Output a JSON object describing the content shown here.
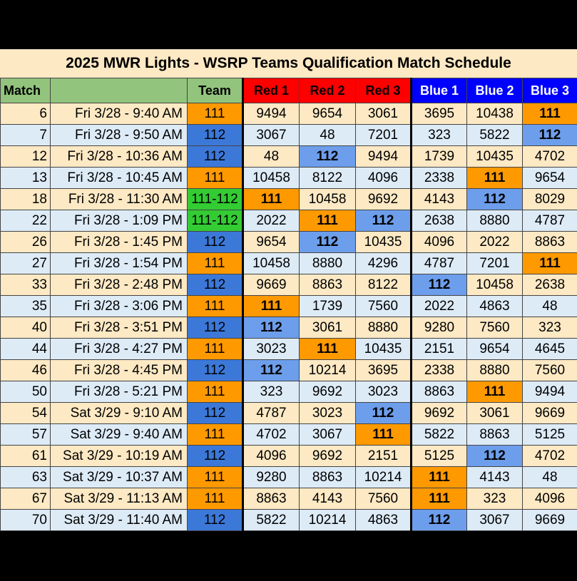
{
  "title": "2025 MWR Lights - WSRP Teams Qualification Match Schedule",
  "headers": {
    "match": "Match",
    "time": "",
    "team": "Team",
    "red1": "Red 1",
    "red2": "Red 2",
    "red3": "Red 3",
    "blue1": "Blue 1",
    "blue2": "Blue 2",
    "blue3": "Blue 3"
  },
  "colors": {
    "team111": "#ff9900",
    "team112": "#3c78d8",
    "both": "#33cc33",
    "red": "#ff0000",
    "blue": "#0000ff",
    "header_green": "#93c47d"
  },
  "rows": [
    {
      "match": "6",
      "time": "Fri 3/28 - 9:40 AM",
      "team": "111",
      "alliances": [
        "9494",
        "9654",
        "3061",
        "3695",
        "10438",
        "111"
      ]
    },
    {
      "match": "7",
      "time": "Fri 3/28 - 9:50 AM",
      "team": "112",
      "alliances": [
        "3067",
        "48",
        "7201",
        "323",
        "5822",
        "112"
      ]
    },
    {
      "match": "12",
      "time": "Fri 3/28 - 10:36 AM",
      "team": "112",
      "alliances": [
        "48",
        "112",
        "9494",
        "1739",
        "10435",
        "4702"
      ]
    },
    {
      "match": "13",
      "time": "Fri 3/28 - 10:45 AM",
      "team": "111",
      "alliances": [
        "10458",
        "8122",
        "4096",
        "2338",
        "111",
        "9654"
      ]
    },
    {
      "match": "18",
      "time": "Fri 3/28 - 11:30 AM",
      "team": "111-112",
      "alliances": [
        "111",
        "10458",
        "9692",
        "4143",
        "112",
        "8029"
      ]
    },
    {
      "match": "22",
      "time": "Fri 3/28 - 1:09 PM",
      "team": "111-112",
      "alliances": [
        "2022",
        "111",
        "112",
        "2638",
        "8880",
        "4787"
      ]
    },
    {
      "match": "26",
      "time": "Fri 3/28 - 1:45 PM",
      "team": "112",
      "alliances": [
        "9654",
        "112",
        "10435",
        "4096",
        "2022",
        "8863"
      ]
    },
    {
      "match": "27",
      "time": "Fri 3/28 - 1:54 PM",
      "team": "111",
      "alliances": [
        "10458",
        "8880",
        "4296",
        "4787",
        "7201",
        "111"
      ]
    },
    {
      "match": "33",
      "time": "Fri 3/28 - 2:48 PM",
      "team": "112",
      "alliances": [
        "9669",
        "8863",
        "8122",
        "112",
        "10458",
        "2638"
      ]
    },
    {
      "match": "35",
      "time": "Fri 3/28 - 3:06 PM",
      "team": "111",
      "alliances": [
        "111",
        "1739",
        "7560",
        "2022",
        "4863",
        "48"
      ]
    },
    {
      "match": "40",
      "time": "Fri 3/28 - 3:51 PM",
      "team": "112",
      "alliances": [
        "112",
        "3061",
        "8880",
        "9280",
        "7560",
        "323"
      ]
    },
    {
      "match": "44",
      "time": "Fri 3/28 - 4:27 PM",
      "team": "111",
      "alliances": [
        "3023",
        "111",
        "10435",
        "2151",
        "9654",
        "4645"
      ]
    },
    {
      "match": "46",
      "time": "Fri 3/28 - 4:45 PM",
      "team": "112",
      "alliances": [
        "112",
        "10214",
        "3695",
        "2338",
        "8880",
        "7560"
      ]
    },
    {
      "match": "50",
      "time": "Fri 3/28 - 5:21 PM",
      "team": "111",
      "alliances": [
        "323",
        "9692",
        "3023",
        "8863",
        "111",
        "9494"
      ]
    },
    {
      "match": "54",
      "time": "Sat 3/29 - 9:10 AM",
      "team": "112",
      "alliances": [
        "4787",
        "3023",
        "112",
        "9692",
        "3061",
        "9669"
      ]
    },
    {
      "match": "57",
      "time": "Sat 3/29 - 9:40 AM",
      "team": "111",
      "alliances": [
        "4702",
        "3067",
        "111",
        "5822",
        "8863",
        "5125"
      ]
    },
    {
      "match": "61",
      "time": "Sat 3/29 - 10:19 AM",
      "team": "112",
      "alliances": [
        "4096",
        "9692",
        "2151",
        "5125",
        "112",
        "4702"
      ]
    },
    {
      "match": "63",
      "time": "Sat 3/29 - 10:37 AM",
      "team": "111",
      "alliances": [
        "9280",
        "8863",
        "10214",
        "111",
        "4143",
        "48"
      ]
    },
    {
      "match": "67",
      "time": "Sat 3/29 - 11:13 AM",
      "team": "111",
      "alliances": [
        "8863",
        "4143",
        "7560",
        "111",
        "323",
        "4096"
      ]
    },
    {
      "match": "70",
      "time": "Sat 3/29 - 11:40 AM",
      "team": "112",
      "alliances": [
        "5822",
        "10214",
        "4863",
        "112",
        "3067",
        "9669"
      ]
    }
  ]
}
